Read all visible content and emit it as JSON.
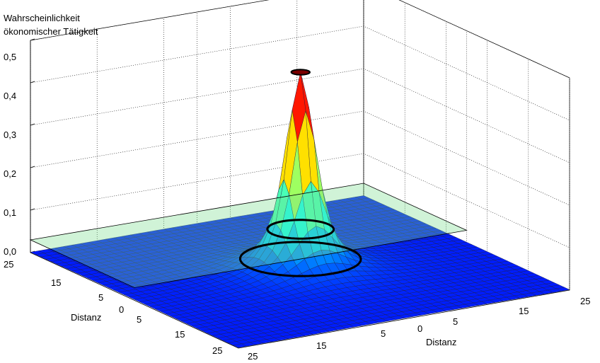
{
  "chart_data": {
    "type": "surface",
    "title": "",
    "zlabel_lines": [
      "Wahrscheinlichkeit",
      "ökonomischer Tätigkeit"
    ],
    "xlabel": "Distanz",
    "ylabel": "Distanz",
    "zlim": [
      0,
      0.5
    ],
    "z_ticks": [
      "0,0",
      "0,1",
      "0,2",
      "0,3",
      "0,4",
      "0,5"
    ],
    "x_ticks": [
      "25",
      "15",
      "5",
      "0",
      "5",
      "15",
      "25"
    ],
    "y_ticks": [
      "25",
      "15",
      "5",
      "0",
      "5",
      "15",
      "25"
    ],
    "domain": [
      -25,
      25
    ],
    "grid": true,
    "colormap": "jet",
    "series": [
      {
        "surface": "probability",
        "peak_value": 0.47,
        "peak_location": [
          0,
          0
        ],
        "edge_value": 0.0
      },
      {
        "surface": "cross-section plane",
        "value": 0.03,
        "cut_at": 0
      }
    ],
    "contours": [
      {
        "level": 0.03
      },
      {
        "level": 0.1
      }
    ]
  }
}
